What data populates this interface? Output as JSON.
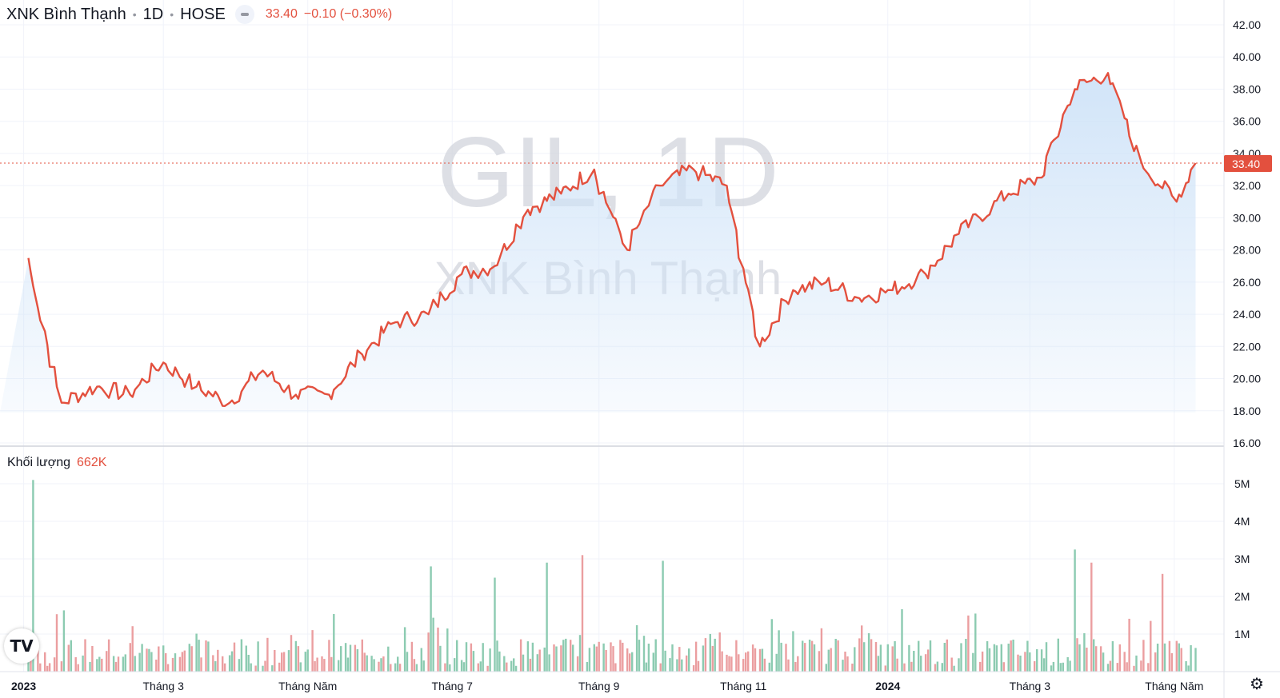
{
  "header": {
    "name": "XNK Bình Thạnh",
    "interval": "1D",
    "exchange": "HOSE",
    "last_price": "33.40",
    "change": "−0.10 (−0.30%)"
  },
  "watermark": {
    "symbol": "GIL, 1D",
    "name": "XNK Bình Thạnh"
  },
  "price_label": "33.40",
  "volume_header": {
    "label": "Khối lượng",
    "value": "662K"
  },
  "x_axis": [
    {
      "label": "2023",
      "bold": true
    },
    {
      "label": "Tháng 3",
      "bold": false
    },
    {
      "label": "Tháng Năm",
      "bold": false
    },
    {
      "label": "Tháng 7",
      "bold": false
    },
    {
      "label": "Tháng 9",
      "bold": false
    },
    {
      "label": "Tháng 11",
      "bold": false
    },
    {
      "label": "2024",
      "bold": true
    },
    {
      "label": "Tháng 3",
      "bold": false
    },
    {
      "label": "Tháng Năm",
      "bold": false
    }
  ],
  "icons": {
    "logo": "tradingview-logo-icon",
    "settings": "gear-icon"
  },
  "colors": {
    "line": "#e3503e",
    "area_top": "#cfe3f8",
    "up_volume": "#8ccbb1",
    "down_volume": "#eb9ea0",
    "accent": "#e3503e"
  },
  "chart_data": [
    {
      "type": "line",
      "title": "",
      "y_ticks": [
        "16.00",
        "18.00",
        "20.00",
        "22.00",
        "24.00",
        "26.00",
        "28.00",
        "30.00",
        "32.00",
        "34.00",
        "36.00",
        "38.00",
        "40.00",
        "42.00"
      ],
      "ylim": [
        16,
        42.5
      ],
      "x": [
        "2023-01-03",
        "2023-01-17",
        "2023-02-01",
        "2023-02-15",
        "2023-03-01",
        "2023-03-15",
        "2023-03-29",
        "2023-04-12",
        "2023-04-26",
        "2023-05-10",
        "2023-05-24",
        "2023-06-07",
        "2023-06-21",
        "2023-07-05",
        "2023-07-19",
        "2023-08-02",
        "2023-08-16",
        "2023-08-30",
        "2023-09-13",
        "2023-09-27",
        "2023-10-11",
        "2023-10-25",
        "2023-11-08",
        "2023-11-22",
        "2023-12-06",
        "2023-12-20",
        "2024-01-03",
        "2024-01-17",
        "2024-01-31",
        "2024-02-21",
        "2024-03-06",
        "2024-03-20",
        "2024-04-03",
        "2024-04-17",
        "2024-05-02",
        "2024-05-10"
      ],
      "series": [
        {
          "values": [
            27.5,
            18.5,
            19.5,
            19.0,
            21.0,
            19.5,
            18.5,
            20.5,
            19.0,
            19.0,
            21.5,
            23.5,
            24.0,
            26.5,
            27.0,
            30.5,
            31.5,
            33.0,
            28.0,
            32.0,
            33.0,
            32.0,
            22.0,
            25.5,
            26.0,
            25.0,
            25.5,
            26.5,
            29.0,
            31.5,
            32.5,
            38.0,
            39.0,
            33.5,
            31.0,
            33.4
          ]
        }
      ]
    },
    {
      "type": "bar",
      "title": "",
      "y_ticks": [
        "1M",
        "2M",
        "3M",
        "4M",
        "5M"
      ],
      "ylim": [
        0,
        5.5
      ],
      "peaks": [
        {
          "date": "2023-01-05",
          "value": 5.1,
          "direction": "up"
        },
        {
          "date": "2023-05-20",
          "value": 2.0,
          "direction": "down"
        },
        {
          "date": "2023-06-22",
          "value": 2.8,
          "direction": "up"
        },
        {
          "date": "2023-07-20",
          "value": 2.5,
          "direction": "up"
        },
        {
          "date": "2023-08-10",
          "value": 2.9,
          "direction": "up"
        },
        {
          "date": "2023-08-25",
          "value": 3.1,
          "direction": "down"
        },
        {
          "date": "2023-09-28",
          "value": 2.95,
          "direction": "up"
        },
        {
          "date": "2024-03-20",
          "value": 3.25,
          "direction": "up"
        },
        {
          "date": "2024-03-27",
          "value": 2.9,
          "direction": "down"
        },
        {
          "date": "2024-04-26",
          "value": 2.6,
          "direction": "down"
        }
      ]
    }
  ]
}
